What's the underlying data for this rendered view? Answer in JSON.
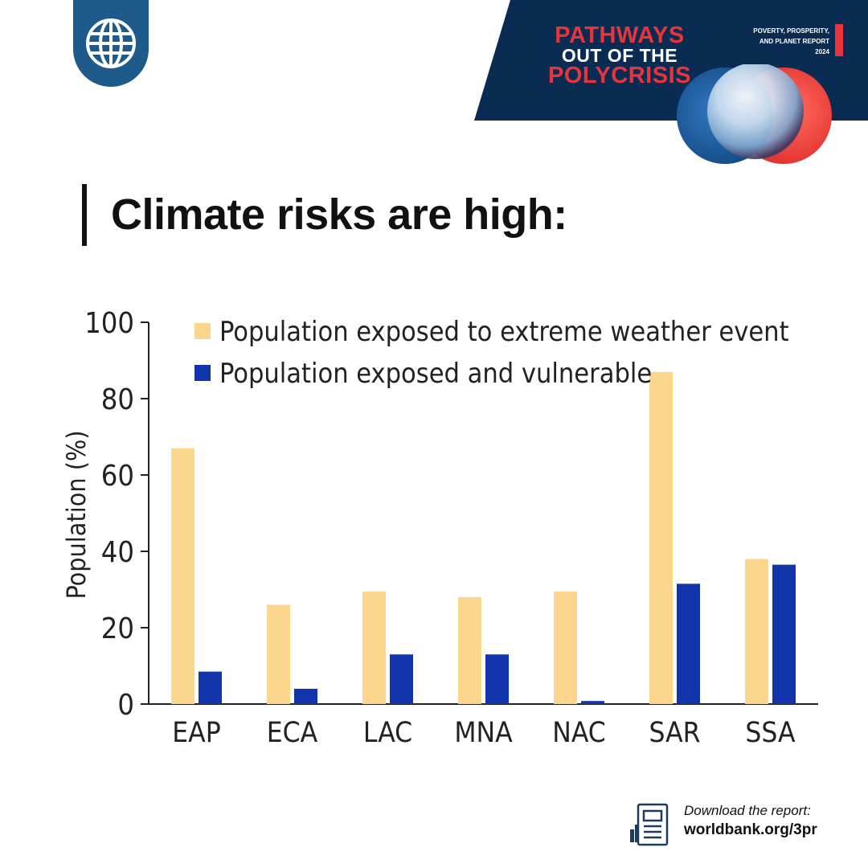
{
  "banner": {
    "title_lines": [
      "PATHWAYS",
      "OUT OF THE",
      "POLYCRISIS"
    ],
    "report_name": "POVERTY, PROSPERITY,\nAND PLANET REPORT\n2024"
  },
  "heading": "Climate risks are high:",
  "footer": {
    "line1": "Download the report:",
    "line2": "worldbank.org/3pr"
  },
  "colors": {
    "navy": "#0b2c52",
    "accent_red": "#e8343a",
    "logo_blue": "#1e5a8a",
    "series_exposed": "#fdd68e",
    "series_vulnerable": "#1235ac"
  },
  "icons": {
    "logo": "world-bank-globe-icon",
    "footer": "report-document-icon"
  },
  "chart_data": {
    "type": "bar",
    "categories": [
      "EAP",
      "ECA",
      "LAC",
      "MNA",
      "NAC",
      "SAR",
      "SSA"
    ],
    "series": [
      {
        "name": "Population exposed to extreme weather event",
        "values": [
          67,
          26,
          29.5,
          28,
          29.5,
          87,
          38
        ],
        "color": "#fdd68e"
      },
      {
        "name": "Population exposed and vulnerable",
        "values": [
          8.5,
          4,
          13,
          13,
          0.8,
          31.5,
          36.5
        ],
        "color": "#1235ac"
      }
    ],
    "ylabel": "Population (%)",
    "xlabel": "",
    "ylim": [
      0,
      100
    ],
    "yticks": [
      0,
      20,
      40,
      60,
      80,
      100
    ],
    "legend_position": "top-left",
    "grid": false
  }
}
